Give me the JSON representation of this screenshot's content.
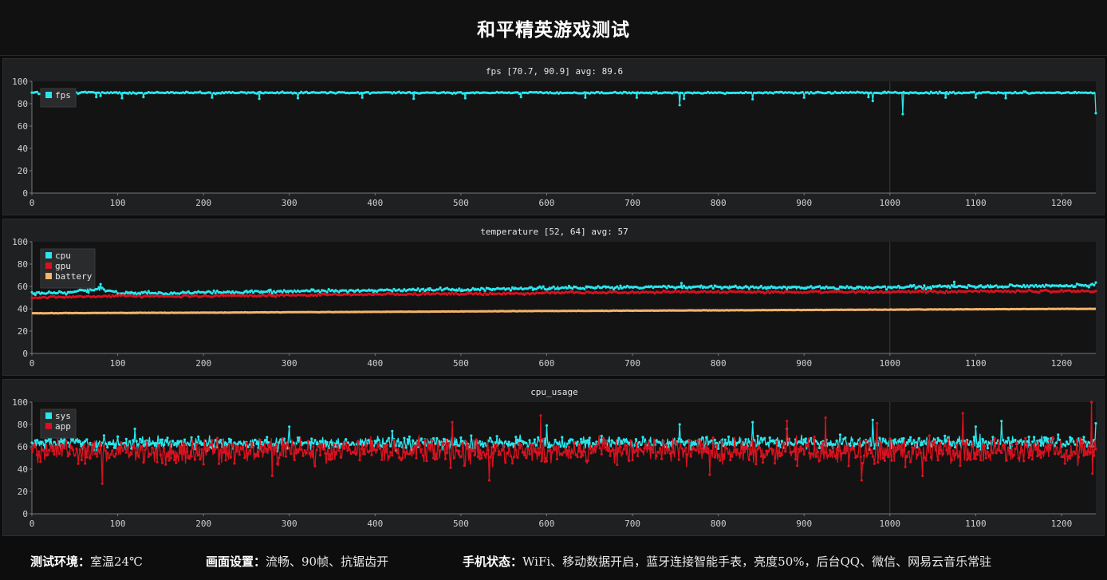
{
  "page": {
    "title": "和平精英游戏测试"
  },
  "footer": {
    "items": [
      {
        "label": "测试环境：",
        "value": "室温24℃"
      },
      {
        "label": "画面设置：",
        "value": "流畅、90帧、抗锯齿开"
      },
      {
        "label": "手机状态：",
        "value": "WiFi、移动数据开启，蓝牙连接智能手表，亮度50%，后台QQ、微信、网易云音乐常驻"
      }
    ]
  },
  "colors": {
    "cyan": "#29e6ec",
    "red": "#d8121f",
    "orange": "#f5b46a",
    "panel_bg": "#1f2021",
    "plot_bg": "#131313"
  },
  "chart_data": [
    {
      "type": "line",
      "title": "fps [70.7, 90.9] avg: 89.6",
      "xlim": [
        0,
        1240
      ],
      "ylim": [
        0,
        100
      ],
      "xticks": [
        0,
        100,
        200,
        300,
        400,
        500,
        600,
        700,
        800,
        900,
        1000,
        1100,
        1200
      ],
      "yticks": [
        0,
        20,
        40,
        60,
        80,
        100
      ],
      "legend": "top-left",
      "grid": false,
      "series": [
        {
          "name": "fps",
          "color": "#29e6ec",
          "marker": true,
          "base": 89.6,
          "noise": 0.6,
          "points": [
            [
              0,
              89.5
            ],
            [
              5,
              90.5
            ],
            [
              10,
              88.6
            ],
            [
              15,
              87.3
            ],
            [
              20,
              90.9
            ],
            [
              50,
              90.0
            ],
            [
              100,
              89.8
            ],
            [
              500,
              89.8
            ],
            [
              1000,
              89.8
            ],
            [
              1240,
              89.8
            ]
          ],
          "dips": [
            [
              47,
              85.0
            ],
            [
              75,
              86.0
            ],
            [
              80,
              87.0
            ],
            [
              105,
              85.0
            ],
            [
              130,
              86.0
            ],
            [
              210,
              85.5
            ],
            [
              265,
              84.5
            ],
            [
              310,
              85.0
            ],
            [
              385,
              85.5
            ],
            [
              445,
              84.5
            ],
            [
              505,
              85.0
            ],
            [
              570,
              86.0
            ],
            [
              645,
              85.5
            ],
            [
              705,
              85.5
            ],
            [
              755,
              78.7
            ],
            [
              760,
              84.5
            ],
            [
              840,
              84.0
            ],
            [
              900,
              85.5
            ],
            [
              975,
              86.0
            ],
            [
              980,
              82.5
            ],
            [
              1015,
              70.7
            ],
            [
              1065,
              85.5
            ],
            [
              1100,
              85.5
            ],
            [
              1135,
              85.0
            ],
            [
              1240,
              71.5
            ]
          ]
        }
      ]
    },
    {
      "type": "line",
      "title": "temperature [52, 64] avg: 57",
      "xlim": [
        0,
        1240
      ],
      "ylim": [
        0,
        100
      ],
      "xticks": [
        0,
        100,
        200,
        300,
        400,
        500,
        600,
        700,
        800,
        900,
        1000,
        1100,
        1200
      ],
      "yticks": [
        0,
        20,
        40,
        60,
        80,
        100
      ],
      "legend": "top-left",
      "grid": false,
      "series": [
        {
          "name": "cpu",
          "color": "#29e6ec",
          "marker": true,
          "noise": 1.2,
          "points": [
            [
              0,
              53.5
            ],
            [
              50,
              55.0
            ],
            [
              80,
              58.0
            ],
            [
              100,
              54.0
            ],
            [
              150,
              54.0
            ],
            [
              250,
              55.0
            ],
            [
              400,
              56.5
            ],
            [
              550,
              57.5
            ],
            [
              600,
              58.5
            ],
            [
              750,
              59.5
            ],
            [
              900,
              59.0
            ],
            [
              1000,
              59.0
            ],
            [
              1080,
              60.0
            ],
            [
              1150,
              60.0
            ],
            [
              1240,
              61.0
            ]
          ],
          "dips": [
            [
              80,
              62.0
            ],
            [
              757,
              63.0
            ],
            [
              1075,
              64.0
            ],
            [
              1240,
              63.5
            ]
          ]
        },
        {
          "name": "gpu",
          "color": "#d8121f",
          "marker": true,
          "noise": 0.8,
          "points": [
            [
              0,
              50.0
            ],
            [
              100,
              51.5
            ],
            [
              150,
              51.0
            ],
            [
              300,
              52.0
            ],
            [
              400,
              53.0
            ],
            [
              550,
              53.5
            ],
            [
              600,
              54.5
            ],
            [
              800,
              55.0
            ],
            [
              1000,
              55.0
            ],
            [
              1240,
              56.0
            ]
          ],
          "dips": []
        },
        {
          "name": "battery",
          "color": "#f5b46a",
          "marker": false,
          "noise": 0.15,
          "points": [
            [
              0,
              36.0
            ],
            [
              200,
              36.5
            ],
            [
              400,
              37.2
            ],
            [
              600,
              38.0
            ],
            [
              800,
              38.6
            ],
            [
              1000,
              39.2
            ],
            [
              1240,
              40.0
            ]
          ],
          "dips": []
        }
      ]
    },
    {
      "type": "line",
      "title": "cpu_usage",
      "xlim": [
        0,
        1240
      ],
      "ylim": [
        0,
        100
      ],
      "xticks": [
        0,
        100,
        200,
        300,
        400,
        500,
        600,
        700,
        800,
        900,
        1000,
        1100,
        1200
      ],
      "yticks": [
        0,
        20,
        40,
        60,
        80,
        100
      ],
      "legend": "top-left",
      "grid": false,
      "series": [
        {
          "name": "sys",
          "color": "#29e6ec",
          "marker": true,
          "noise": 4.5,
          "points": [
            [
              0,
              63.0
            ],
            [
              1240,
              64.0
            ]
          ],
          "dips": [
            [
              120,
              76.0
            ],
            [
              300,
              78.0
            ],
            [
              420,
              74.0
            ],
            [
              600,
              79.0
            ],
            [
              755,
              80.0
            ],
            [
              840,
              82.0
            ],
            [
              880,
              76.0
            ],
            [
              980,
              84.0
            ],
            [
              1100,
              78.0
            ],
            [
              1130,
              83.0
            ],
            [
              1240,
              81.0
            ]
          ]
        },
        {
          "name": "app",
          "color": "#d8121f",
          "marker": true,
          "noise": 9.0,
          "points": [
            [
              0,
              56.0
            ],
            [
              1240,
              56.0
            ]
          ],
          "dips": [
            [
              82,
              27.0
            ],
            [
              280,
              34.0
            ],
            [
              490,
              82.0
            ],
            [
              533,
              30.0
            ],
            [
              593,
              88.0
            ],
            [
              790,
              35.0
            ],
            [
              880,
              83.0
            ],
            [
              925,
              86.0
            ],
            [
              967,
              30.0
            ],
            [
              985,
              81.0
            ],
            [
              1038,
              34.0
            ],
            [
              1085,
              90.0
            ],
            [
              1235,
              100.0
            ],
            [
              1236,
              36.0
            ]
          ]
        }
      ]
    }
  ]
}
